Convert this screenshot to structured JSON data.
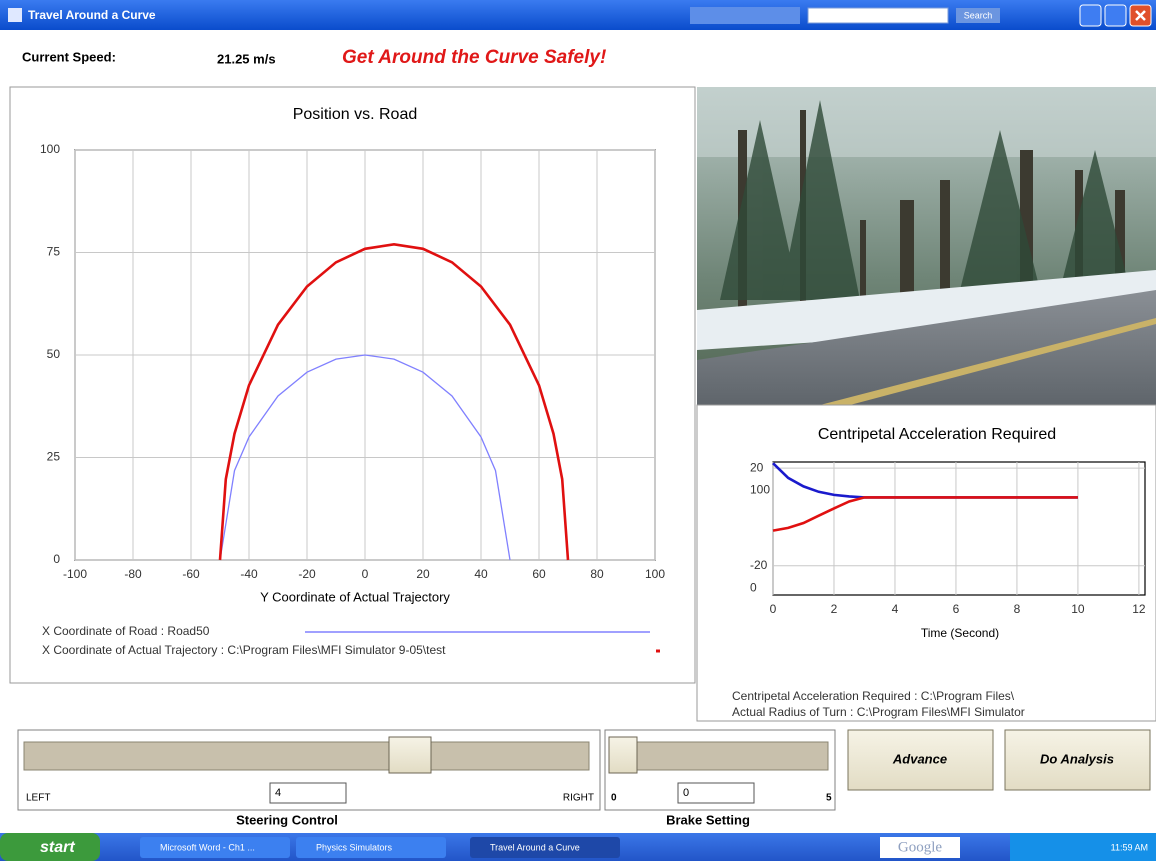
{
  "window": {
    "title": "Travel Around a Curve",
    "search_button": "Search"
  },
  "status": {
    "speed_label": "Current Speed:",
    "speed_value": "21.25 m/s",
    "headline": "Get Around the Curve Safely!"
  },
  "charts": [
    {
      "type": "line",
      "title": "Position vs. Road",
      "xlabel": "Y Coordinate of Actual Trajectory",
      "xlim": [
        -100,
        100
      ],
      "xticks": [
        -100,
        -80,
        -60,
        -40,
        -20,
        0,
        20,
        40,
        60,
        80,
        100
      ],
      "ylim": [
        0,
        100
      ],
      "yticks": [
        0,
        25,
        50,
        75,
        100
      ],
      "grid": true,
      "series": [
        {
          "name": "X Coordinate of Road : Road50",
          "color": "#8080ff",
          "x": [
            -50,
            -45,
            -40,
            -30,
            -20,
            -10,
            0,
            10,
            20,
            30,
            40,
            45,
            50
          ],
          "values": [
            0,
            21.8,
            30,
            40,
            45.8,
            49,
            50,
            49,
            45.8,
            40,
            30,
            21.8,
            0
          ]
        },
        {
          "name": "X Coordinate of Actual Trajectory : C:\\Program Files\\MFI Simulator 9-05\\test",
          "color": "#e01010",
          "x": [
            -50,
            -48,
            -45,
            -40,
            -30,
            -20,
            -10,
            0,
            10,
            20,
            30,
            40,
            50,
            60,
            65,
            68,
            70
          ],
          "values": [
            0,
            19.7,
            30.8,
            42.6,
            57.4,
            66.7,
            72.6,
            75.9,
            77,
            75.9,
            72.6,
            66.7,
            57.4,
            42.6,
            30.8,
            19.7,
            0
          ]
        }
      ]
    },
    {
      "type": "line",
      "title": "Centripetal Acceleration Required",
      "xlabel": "Time (Second)",
      "xlim": [
        0,
        12.2
      ],
      "xticks": [
        0,
        2,
        4,
        6,
        8,
        10,
        12
      ],
      "ylim": [
        -32,
        22.5
      ],
      "yticks": [
        -20,
        20
      ],
      "y2lim": [
        -7,
        129
      ],
      "y2ticks": [
        0,
        100
      ],
      "grid": true,
      "series": [
        {
          "name": "Centripetal Acceleration Required : C:\\Program Files\\",
          "color": "#1a1acc",
          "x": [
            0,
            0.5,
            1,
            1.5,
            2,
            2.5,
            3,
            4,
            6,
            8,
            10
          ],
          "values": [
            22,
            16,
            12.5,
            10.3,
            9,
            8.4,
            8,
            8,
            8,
            8,
            8
          ]
        },
        {
          "name": "Actual Radius of Turn : C:\\Program Files\\MFI Simulator",
          "color": "#e01010",
          "x": [
            0,
            0.5,
            1,
            1.5,
            2,
            2.5,
            3,
            4,
            6,
            8,
            10
          ],
          "values": [
            -5.6,
            -4.5,
            -2.5,
            0.5,
            3.5,
            6.3,
            8,
            8,
            8,
            8,
            8
          ]
        }
      ]
    }
  ],
  "steering": {
    "left": "LEFT",
    "right": "RIGHT",
    "value": "4",
    "label": "Steering Control"
  },
  "brake": {
    "min": "0",
    "max": "5",
    "value": "0",
    "label": "Brake Setting"
  },
  "buttons": [
    "Advance",
    "Do Analysis"
  ],
  "taskbar": {
    "start": "start",
    "items": [
      "Microsoft Word - Ch1 ...",
      "Physics Simulators",
      "Travel Around a Curve"
    ],
    "search_logo": "Google",
    "clock": "11:59 AM"
  }
}
